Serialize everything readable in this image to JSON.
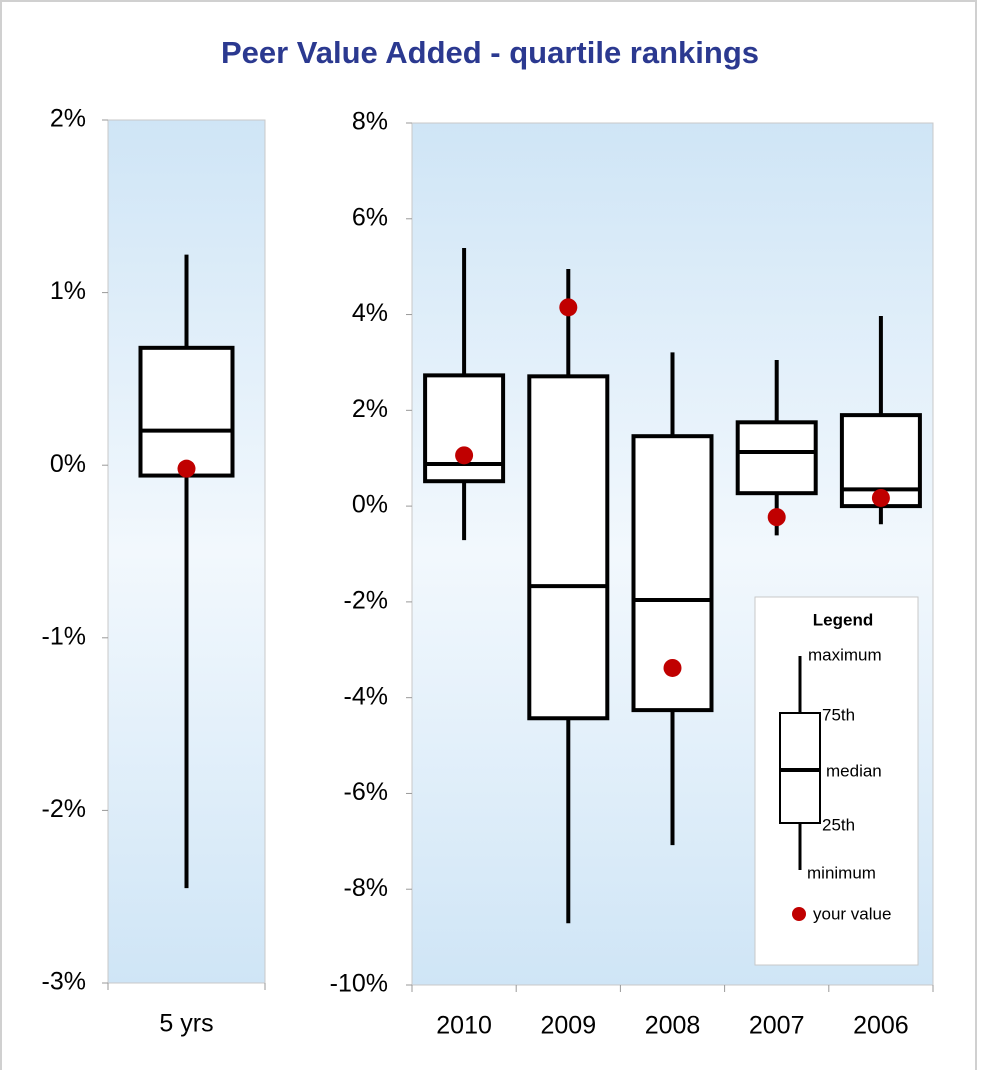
{
  "title": "Peer Value Added - quartile rankings",
  "chart_data": [
    {
      "type": "box",
      "categories": [
        "5 yrs"
      ],
      "series": [
        {
          "values": [
            1.22
          ]
        },
        {
          "values": [
            0.68
          ]
        },
        {
          "values": [
            0.2
          ]
        },
        {
          "values": [
            -0.06
          ]
        },
        {
          "values": [
            -2.45
          ]
        },
        {
          "color": "#c00000",
          "values": [
            -0.02
          ]
        }
      ],
      "ylim": [
        -3,
        2
      ],
      "yticks": [
        {
          "value": -3,
          "label": "-3%"
        },
        {
          "value": -2,
          "label": "-2%"
        },
        {
          "value": -1,
          "label": "-1%"
        },
        {
          "value": 0,
          "label": "0%"
        },
        {
          "value": 1,
          "label": "1%"
        },
        {
          "value": 2,
          "label": "2%"
        }
      ]
    },
    {
      "type": "box",
      "categories": [
        "2010",
        "2009",
        "2008",
        "2007",
        "2006"
      ],
      "series": [
        {
          "name": "maximum",
          "values": [
            5.39,
            4.95,
            3.21,
            3.05,
            3.97
          ]
        },
        {
          "name": "75th",
          "values": [
            2.73,
            2.71,
            1.46,
            1.75,
            1.9
          ]
        },
        {
          "name": "median",
          "values": [
            0.88,
            -1.67,
            -1.96,
            1.13,
            0.35
          ]
        },
        {
          "name": "25th",
          "values": [
            0.52,
            -4.43,
            -4.26,
            0.27,
            0
          ]
        },
        {
          "name": "minimum",
          "values": [
            -0.71,
            -8.71,
            -7.08,
            -0.61,
            -0.38
          ]
        },
        {
          "name": "your value",
          "color": "#c00000",
          "values": [
            1.06,
            4.15,
            -3.38,
            -0.23,
            0.17
          ]
        }
      ],
      "ylim": [
        -10,
        8
      ],
      "yticks": [
        {
          "value": -10,
          "label": "-10%"
        },
        {
          "value": -8,
          "label": "-8%"
        },
        {
          "value": -6,
          "label": "-6%"
        },
        {
          "value": -4,
          "label": "-4%"
        },
        {
          "value": -2,
          "label": "-2%"
        },
        {
          "value": 0,
          "label": "0%"
        },
        {
          "value": 2,
          "label": "2%"
        },
        {
          "value": 4,
          "label": "4%"
        },
        {
          "value": 6,
          "label": "6%"
        },
        {
          "value": 8,
          "label": "8%"
        }
      ],
      "legend_title": "Legend"
    }
  ]
}
